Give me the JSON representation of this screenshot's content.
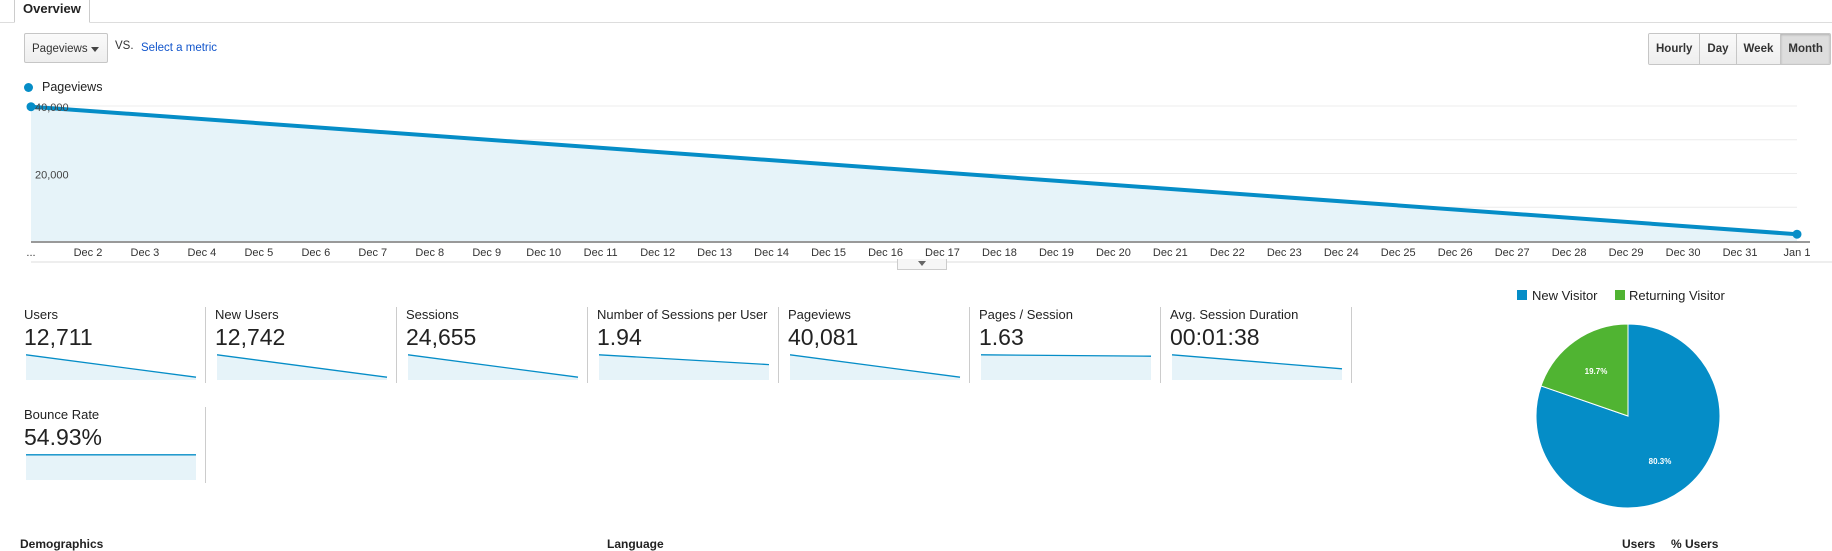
{
  "tabs": {
    "overview": "Overview"
  },
  "controls": {
    "metric_select": "Pageviews",
    "vs": "VS.",
    "select_metric": "Select a metric",
    "periods": [
      "Hourly",
      "Day",
      "Week",
      "Month"
    ],
    "active_period": "Month"
  },
  "chart_data": {
    "type": "area",
    "series": [
      {
        "name": "Pageviews",
        "x": [
          "Dec 1",
          "Jan 1"
        ],
        "values": [
          40081,
          2300
        ]
      }
    ],
    "x_tick_labels": [
      "...",
      "Dec 2",
      "Dec 3",
      "Dec 4",
      "Dec 5",
      "Dec 6",
      "Dec 7",
      "Dec 8",
      "Dec 9",
      "Dec 10",
      "Dec 11",
      "Dec 12",
      "Dec 13",
      "Dec 14",
      "Dec 15",
      "Dec 16",
      "Dec 17",
      "Dec 18",
      "Dec 19",
      "Dec 20",
      "Dec 21",
      "Dec 22",
      "Dec 23",
      "Dec 24",
      "Dec 25",
      "Dec 26",
      "Dec 27",
      "Dec 28",
      "Dec 29",
      "Dec 30",
      "Dec 31",
      "Jan 1"
    ],
    "y_ticks": [
      "40,000",
      "20,000"
    ],
    "ylim": [
      0,
      40000
    ],
    "color": "#058dc7"
  },
  "metrics": [
    {
      "label": "Users",
      "value": "12,711",
      "spark": [
        0.9,
        0.1
      ]
    },
    {
      "label": "New Users",
      "value": "12,742",
      "spark": [
        0.9,
        0.1
      ]
    },
    {
      "label": "Sessions",
      "value": "24,655",
      "spark": [
        0.9,
        0.1
      ]
    },
    {
      "label": "Number of Sessions per User",
      "value": "1.94",
      "spark": [
        0.9,
        0.55
      ]
    },
    {
      "label": "Pageviews",
      "value": "40,081",
      "spark": [
        0.9,
        0.1
      ]
    },
    {
      "label": "Pages / Session",
      "value": "1.63",
      "spark": [
        0.9,
        0.85
      ]
    },
    {
      "label": "Avg. Session Duration",
      "value": "00:01:38",
      "spark": [
        0.9,
        0.4
      ]
    },
    {
      "label": "Bounce Rate",
      "value": "54.93%",
      "spark": [
        0.9,
        0.9
      ]
    }
  ],
  "pie": {
    "legend": [
      {
        "label": "New Visitor",
        "color": "#058dc7"
      },
      {
        "label": "Returning Visitor",
        "color": "#50b432"
      }
    ],
    "slices": [
      {
        "name": "New Visitor",
        "value": 80.3,
        "label": "80.3%",
        "color": "#058dc7"
      },
      {
        "name": "Returning Visitor",
        "value": 19.7,
        "label": "19.7%",
        "color": "#50b432"
      }
    ]
  },
  "bottom": {
    "demographics": "Demographics",
    "language": "Language",
    "users": "Users",
    "pct_users": "% Users"
  }
}
